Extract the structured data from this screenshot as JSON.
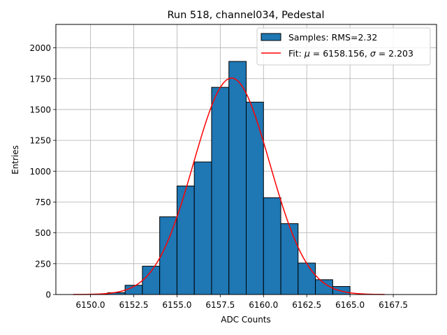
{
  "chart_data": {
    "type": "bar",
    "title": "Run 518, channel034, Pedestal",
    "xlabel": "ADC Counts",
    "ylabel": "Entries",
    "xlim": [
      6148.0,
      6170.0
    ],
    "ylim": [
      0,
      2190
    ],
    "grid": true,
    "legend_position": "top-right",
    "x_ticks": [
      6150.0,
      6152.5,
      6155.0,
      6157.5,
      6160.0,
      6162.5,
      6165.0,
      6167.5
    ],
    "x_tick_labels": [
      "6150.0",
      "6152.5",
      "6155.0",
      "6157.5",
      "6160.0",
      "6162.5",
      "6165.0",
      "6167.5"
    ],
    "y_ticks": [
      0,
      250,
      500,
      750,
      1000,
      1250,
      1500,
      1750,
      2000
    ],
    "y_tick_labels": [
      "0",
      "250",
      "500",
      "750",
      "1000",
      "1250",
      "1500",
      "1750",
      "2000"
    ],
    "bin_edges": [
      6150,
      6151,
      6152,
      6153,
      6154,
      6155,
      6156,
      6157,
      6158,
      6159,
      6160,
      6161,
      6162,
      6163,
      6164,
      6165
    ],
    "values": [
      3,
      15,
      75,
      230,
      630,
      880,
      1075,
      1680,
      1890,
      1560,
      785,
      575,
      255,
      120,
      65
    ],
    "series": [
      {
        "name": "Samples: RMS=2.32",
        "kind": "histogram",
        "color": "#1f77b4"
      },
      {
        "name_prefix": "Fit: ",
        "name_mu_symbol": "μ",
        "name_mu_value": " = 6158.156, ",
        "name_sigma_symbol": "σ",
        "name_sigma_value": " = 2.203",
        "kind": "gaussian",
        "color": "#ff0000",
        "mu": 6158.156,
        "sigma": 2.203,
        "amplitude": 1755,
        "x_range": [
          6149.0,
          6167.0
        ]
      }
    ]
  }
}
